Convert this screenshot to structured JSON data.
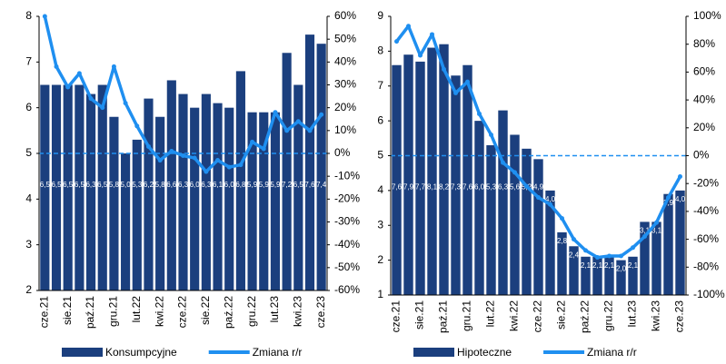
{
  "chart_data": [
    {
      "type": "bar",
      "categories": [
        "cze.21",
        null,
        "sie.21",
        null,
        "paź.21",
        null,
        "gru.21",
        null,
        "lut.22",
        null,
        "kwi.22",
        null,
        "cze.22",
        null,
        "sie.22",
        null,
        "paź.22",
        null,
        "gru.22",
        null,
        "lut.23",
        null,
        "kwi.23",
        null,
        "cze.23"
      ],
      "series": [
        {
          "name": "Konsumpcyjne",
          "color": "#1b3f7e",
          "values": [
            6.5,
            6.5,
            6.5,
            6.5,
            6.3,
            6.5,
            5.8,
            5.0,
            5.3,
            6.2,
            5.8,
            6.6,
            6.3,
            6.0,
            6.3,
            6.1,
            6.0,
            6.8,
            5.9,
            5.9,
            5.9,
            7.2,
            6.5,
            7.6,
            7.4
          ],
          "value_labels": [
            "6,5",
            "6,5",
            "6,5",
            "6,5",
            "6,3",
            "6,5",
            "5,8",
            "5,0",
            "5,3",
            "6,2",
            "5,8",
            "6,6",
            "6,3",
            "6,0",
            "6,3",
            "6,1",
            "6,0",
            "6,8",
            "5,9",
            "5,9",
            "5,9",
            "7,2",
            "6,5",
            "7,6",
            "7,4"
          ]
        },
        {
          "name": "Zmiana r/r",
          "color": "#1f8ff0",
          "axis": "y2",
          "values": [
            60,
            38,
            29,
            35,
            24,
            20,
            38,
            22,
            12,
            3,
            -3,
            1,
            -1,
            -2,
            -8,
            -3,
            -6,
            -5,
            5,
            2,
            18,
            10,
            14,
            10,
            17
          ]
        }
      ],
      "ylim": [
        2,
        8
      ],
      "yticks": [
        2,
        3,
        4,
        5,
        6,
        7,
        8
      ],
      "y2lim": [
        -60,
        60
      ],
      "y2ticks": [
        {
          "value": -60,
          "label": "-60%"
        },
        {
          "value": -50,
          "label": "-50%"
        },
        {
          "value": -40,
          "label": "-40%"
        },
        {
          "value": -30,
          "label": "-30%"
        },
        {
          "value": -20,
          "label": "-20%"
        },
        {
          "value": -10,
          "label": "-10%"
        },
        {
          "value": 0,
          "label": "0%"
        },
        {
          "value": 10,
          "label": "10%"
        },
        {
          "value": 20,
          "label": "20%"
        },
        {
          "value": 30,
          "label": "30%"
        },
        {
          "value": 40,
          "label": "40%"
        },
        {
          "value": 50,
          "label": "50%"
        },
        {
          "value": 60,
          "label": "60%"
        }
      ]
    },
    {
      "type": "bar",
      "categories": [
        "cze.21",
        null,
        "sie.21",
        null,
        "paź.21",
        null,
        "gru.21",
        null,
        "lut.22",
        null,
        "kwi.22",
        null,
        "cze.22",
        null,
        "sie.22",
        null,
        "paź.22",
        null,
        "gru.22",
        null,
        "lut.23",
        null,
        "kwi.23",
        null,
        "cze.23"
      ],
      "series": [
        {
          "name": "Hipoteczne",
          "color": "#1b3f7e",
          "values": [
            7.6,
            7.9,
            7.7,
            8.1,
            8.2,
            7.3,
            7.6,
            6.0,
            5.3,
            6.3,
            5.6,
            5.2,
            4.9,
            4.0,
            2.8,
            2.4,
            2.1,
            2.1,
            2.1,
            2.0,
            2.1,
            3.1,
            3.1,
            3.9,
            4.0
          ],
          "value_labels": [
            "7,6",
            "7,9",
            "7,7",
            "8,1",
            "8,2",
            "7,3",
            "7,6",
            "6,0",
            "5,3",
            "6,3",
            "5,6",
            "5,2",
            "4,9",
            "4,0",
            "2,8",
            "2,4",
            "2,1",
            "2,1",
            "2,1",
            "2,0",
            "2,1",
            "3,1",
            "3,1",
            "3,9",
            "4,0"
          ]
        },
        {
          "name": "Zmiana r/r",
          "color": "#1f8ff0",
          "axis": "y2",
          "values": [
            82,
            93,
            72,
            87,
            62,
            45,
            53,
            30,
            15,
            -5,
            -12,
            -22,
            -30,
            -35,
            -45,
            -60,
            -68,
            -73,
            -72,
            -72,
            -66,
            -58,
            -48,
            -30,
            -15
          ]
        }
      ],
      "ylim": [
        1,
        9
      ],
      "yticks": [
        1,
        2,
        3,
        4,
        5,
        6,
        7,
        8,
        9
      ],
      "y2lim": [
        -100,
        100
      ],
      "y2ticks": [
        {
          "value": -100,
          "label": "-100%"
        },
        {
          "value": -80,
          "label": "-80%"
        },
        {
          "value": -60,
          "label": "-60%"
        },
        {
          "value": -40,
          "label": "-40%"
        },
        {
          "value": -20,
          "label": "-20%"
        },
        {
          "value": 0,
          "label": "0%"
        },
        {
          "value": 20,
          "label": "20%"
        },
        {
          "value": 40,
          "label": "40%"
        },
        {
          "value": 60,
          "label": "60%"
        },
        {
          "value": 80,
          "label": "80%"
        },
        {
          "value": 100,
          "label": "100%"
        }
      ]
    }
  ]
}
